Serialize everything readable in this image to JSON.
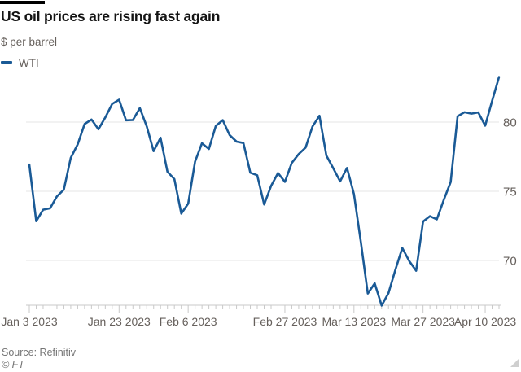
{
  "header": {
    "title": "US oil prices are rising fast again",
    "subtitle": "$ per barrel"
  },
  "legend": {
    "label": "WTI"
  },
  "footer": {
    "source": "Source: Refinitiv",
    "copyright": "© FT"
  },
  "colors": {
    "accent_bar": "#000000",
    "line_blue": "#1a5a96",
    "grid": "#e4e4e4",
    "axis": "#c9c9c9",
    "text_dark": "#141414",
    "text_gray": "#66605c",
    "source_gray": "#757575"
  },
  "chart_data": {
    "type": "line",
    "title": "US oil prices are rising fast again",
    "xlabel": "",
    "ylabel": "$ per barrel",
    "grid": "horizontal",
    "legend_position": "top-left",
    "y_ticks": [
      80,
      75,
      70
    ],
    "ylim": [
      66.7,
      83.4
    ],
    "x": [
      "Jan 3",
      "Jan 4",
      "Jan 5",
      "Jan 6",
      "Jan 9",
      "Jan 10",
      "Jan 11",
      "Jan 12",
      "Jan 13",
      "Jan 17",
      "Jan 18",
      "Jan 19",
      "Jan 20",
      "Jan 23",
      "Jan 24",
      "Jan 25",
      "Jan 26",
      "Jan 27",
      "Jan 30",
      "Jan 31",
      "Feb 1",
      "Feb 2",
      "Feb 3",
      "Feb 6",
      "Feb 7",
      "Feb 8",
      "Feb 9",
      "Feb 10",
      "Feb 13",
      "Feb 14",
      "Feb 15",
      "Feb 16",
      "Feb 17",
      "Feb 21",
      "Feb 22",
      "Feb 23",
      "Feb 24",
      "Feb 27",
      "Feb 28",
      "Mar 1",
      "Mar 2",
      "Mar 3",
      "Mar 6",
      "Mar 7",
      "Mar 8",
      "Mar 9",
      "Mar 10",
      "Mar 13",
      "Mar 14",
      "Mar 15",
      "Mar 16",
      "Mar 17",
      "Mar 20",
      "Mar 21",
      "Mar 22",
      "Mar 23",
      "Mar 24",
      "Mar 27",
      "Mar 28",
      "Mar 29",
      "Mar 30",
      "Mar 31",
      "Apr 3",
      "Apr 4",
      "Apr 5",
      "Apr 6",
      "Apr 10",
      "Apr 11",
      "Apr 12"
    ],
    "x_tick_labels": [
      {
        "label": "Jan 3 2023",
        "index": 0
      },
      {
        "label": "Jan 23 2023",
        "index": 13
      },
      {
        "label": "Feb 6 2023",
        "index": 23
      },
      {
        "label": "Feb 27 2023",
        "index": 37
      },
      {
        "label": "Mar 13 2023",
        "index": 47
      },
      {
        "label": "Mar 27 2023",
        "index": 57
      },
      {
        "label": "Apr 10 2023",
        "index": 66
      }
    ],
    "series": [
      {
        "name": "WTI",
        "color": "#1a5a96",
        "values": [
          76.93,
          72.84,
          73.67,
          73.77,
          74.63,
          75.12,
          77.41,
          78.39,
          79.86,
          80.18,
          79.48,
          80.33,
          81.31,
          81.62,
          80.13,
          80.15,
          81.01,
          79.68,
          77.9,
          78.87,
          76.41,
          75.88,
          73.39,
          74.11,
          77.14,
          78.47,
          78.06,
          79.72,
          80.14,
          79.06,
          78.59,
          78.49,
          76.34,
          76.16,
          74.05,
          75.39,
          76.32,
          75.68,
          77.05,
          77.69,
          78.16,
          79.68,
          80.46,
          77.58,
          76.66,
          75.72,
          76.68,
          74.8,
          71.33,
          67.61,
          68.35,
          66.74,
          67.64,
          69.33,
          70.9,
          69.96,
          69.26,
          72.81,
          73.2,
          72.97,
          74.37,
          75.67,
          80.42,
          80.71,
          80.61,
          80.7,
          79.74,
          81.53,
          83.26
        ]
      }
    ]
  }
}
